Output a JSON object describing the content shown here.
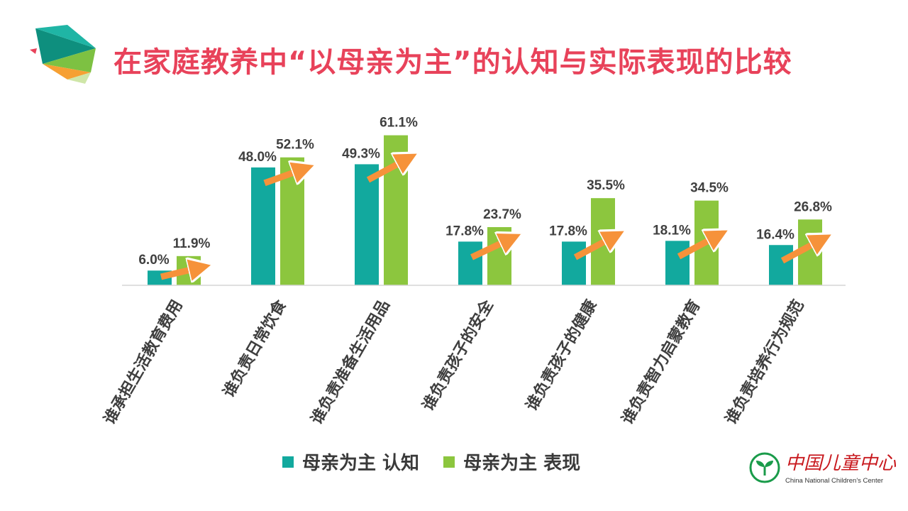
{
  "title": "在家庭教养中“以母亲为主”的认知与实际表现的比较",
  "colors": {
    "title": "#e8425a",
    "cognition": "#12a99e",
    "performance": "#8cc63e",
    "arrow": "#f6923a",
    "logo_red": "#c8191e",
    "logo_green": "#1a9b4a"
  },
  "chart_data": {
    "type": "bar",
    "title": "在家庭教养中“以母亲为主”的认知与实际表现的比较",
    "xlabel": "",
    "ylabel": "",
    "ylim": [
      0,
      70
    ],
    "grid": false,
    "legend_position": "bottom",
    "categories": [
      "谁承担生活教育费用",
      "谁负责日常饮食",
      "谁负责准备生活用品",
      "谁负责孩子的安全",
      "谁负责孩子的健康",
      "谁负责智力启蒙教育",
      "谁负责培养行为规范"
    ],
    "series": [
      {
        "name": "母亲为主 认知",
        "values": [
          6.0,
          48.0,
          49.3,
          17.8,
          17.8,
          18.1,
          16.4
        ],
        "labels": [
          "6.0%",
          "48.0%",
          "49.3%",
          "17.8%",
          "17.8%",
          "18.1%",
          "16.4%"
        ]
      },
      {
        "name": "母亲为主 表现",
        "values": [
          11.9,
          52.1,
          61.1,
          23.7,
          35.5,
          34.5,
          26.8
        ],
        "labels": [
          "11.9%",
          "52.1%",
          "61.1%",
          "23.7%",
          "35.5%",
          "34.5%",
          "26.8%"
        ]
      }
    ],
    "annotations": "orange upward arrow from cognition bar to performance bar in each category"
  },
  "legend": {
    "items": [
      {
        "label": "母亲为主 认知"
      },
      {
        "label": "母亲为主 表现"
      }
    ]
  },
  "org_logo": {
    "name_cn": "中国儿童中心",
    "name_en": "China National Children's Center"
  }
}
